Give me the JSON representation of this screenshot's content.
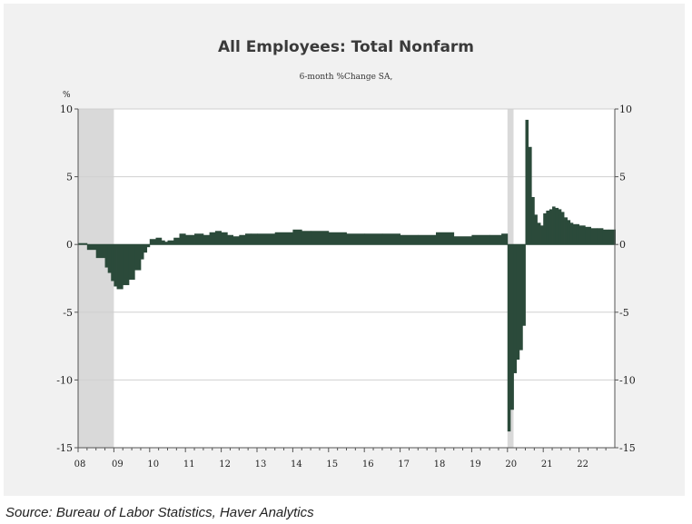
{
  "chart_data": {
    "type": "bar",
    "title": "All Employees: Total Nonfarm",
    "subtitle": "6-month %Change    SA,",
    "y_unit_label": "%",
    "xlabel": "",
    "ylabel": "",
    "ylim": [
      -15,
      10
    ],
    "y_ticks": [
      -15,
      -10,
      -5,
      0,
      5,
      10
    ],
    "y_tick_labels": [
      "-15",
      "-10",
      "-5",
      "0",
      "5",
      "10"
    ],
    "x_range": [
      2008.0,
      2023.0
    ],
    "x_tick_labels": [
      "08",
      "09",
      "10",
      "11",
      "12",
      "13",
      "14",
      "15",
      "16",
      "17",
      "18",
      "19",
      "20",
      "21",
      "22"
    ],
    "grid": true,
    "bar_color": "#2b4a3a",
    "recession_color": "#d9d9d9",
    "recessions": [
      [
        2008.0,
        2009.0
      ],
      [
        2020.0,
        2020.17
      ]
    ],
    "x": [
      2008.0,
      2008.25,
      2008.5,
      2008.75,
      2008.83,
      2008.92,
      2009.0,
      2009.08,
      2009.25,
      2009.42,
      2009.58,
      2009.75,
      2009.83,
      2009.92,
      2010.0,
      2010.17,
      2010.33,
      2010.42,
      2010.5,
      2010.67,
      2010.83,
      2011.0,
      2011.25,
      2011.5,
      2011.67,
      2011.83,
      2012.0,
      2012.17,
      2012.33,
      2012.5,
      2012.67,
      2012.83,
      2013.0,
      2013.5,
      2014.0,
      2014.25,
      2014.5,
      2015.0,
      2015.5,
      2016.0,
      2016.5,
      2017.0,
      2017.5,
      2018.0,
      2018.5,
      2019.0,
      2019.5,
      2019.83,
      2020.0,
      2020.08,
      2020.17,
      2020.25,
      2020.33,
      2020.42,
      2020.5,
      2020.58,
      2020.67,
      2020.75,
      2020.83,
      2020.92,
      2021.0,
      2021.08,
      2021.17,
      2021.25,
      2021.33,
      2021.42,
      2021.5,
      2021.58,
      2021.67,
      2021.75,
      2021.83,
      2021.92,
      2022.0,
      2022.17,
      2022.33,
      2022.5,
      2022.67,
      2022.83,
      2023.0
    ],
    "values": [
      0.1,
      -0.4,
      -1.0,
      -1.7,
      -2.1,
      -2.7,
      -3.1,
      -3.3,
      -3.0,
      -2.6,
      -1.9,
      -1.1,
      -0.6,
      -0.2,
      0.4,
      0.5,
      0.3,
      0.2,
      0.3,
      0.5,
      0.8,
      0.7,
      0.8,
      0.7,
      0.9,
      1.0,
      0.9,
      0.7,
      0.6,
      0.7,
      0.8,
      0.8,
      0.8,
      0.9,
      1.1,
      1.0,
      1.0,
      0.9,
      0.8,
      0.8,
      0.8,
      0.7,
      0.7,
      0.9,
      0.6,
      0.7,
      0.7,
      0.8,
      -13.8,
      -12.2,
      -9.5,
      -8.5,
      -7.8,
      -6.0,
      9.2,
      7.2,
      3.5,
      2.2,
      1.6,
      1.4,
      2.3,
      2.5,
      2.6,
      2.8,
      2.7,
      2.6,
      2.4,
      2.0,
      1.8,
      1.6,
      1.5,
      1.5,
      1.4,
      1.3,
      1.2,
      1.2,
      1.1,
      1.1,
      1.1
    ]
  },
  "source": "Source: Bureau of Labor Statistics, Haver Analytics"
}
